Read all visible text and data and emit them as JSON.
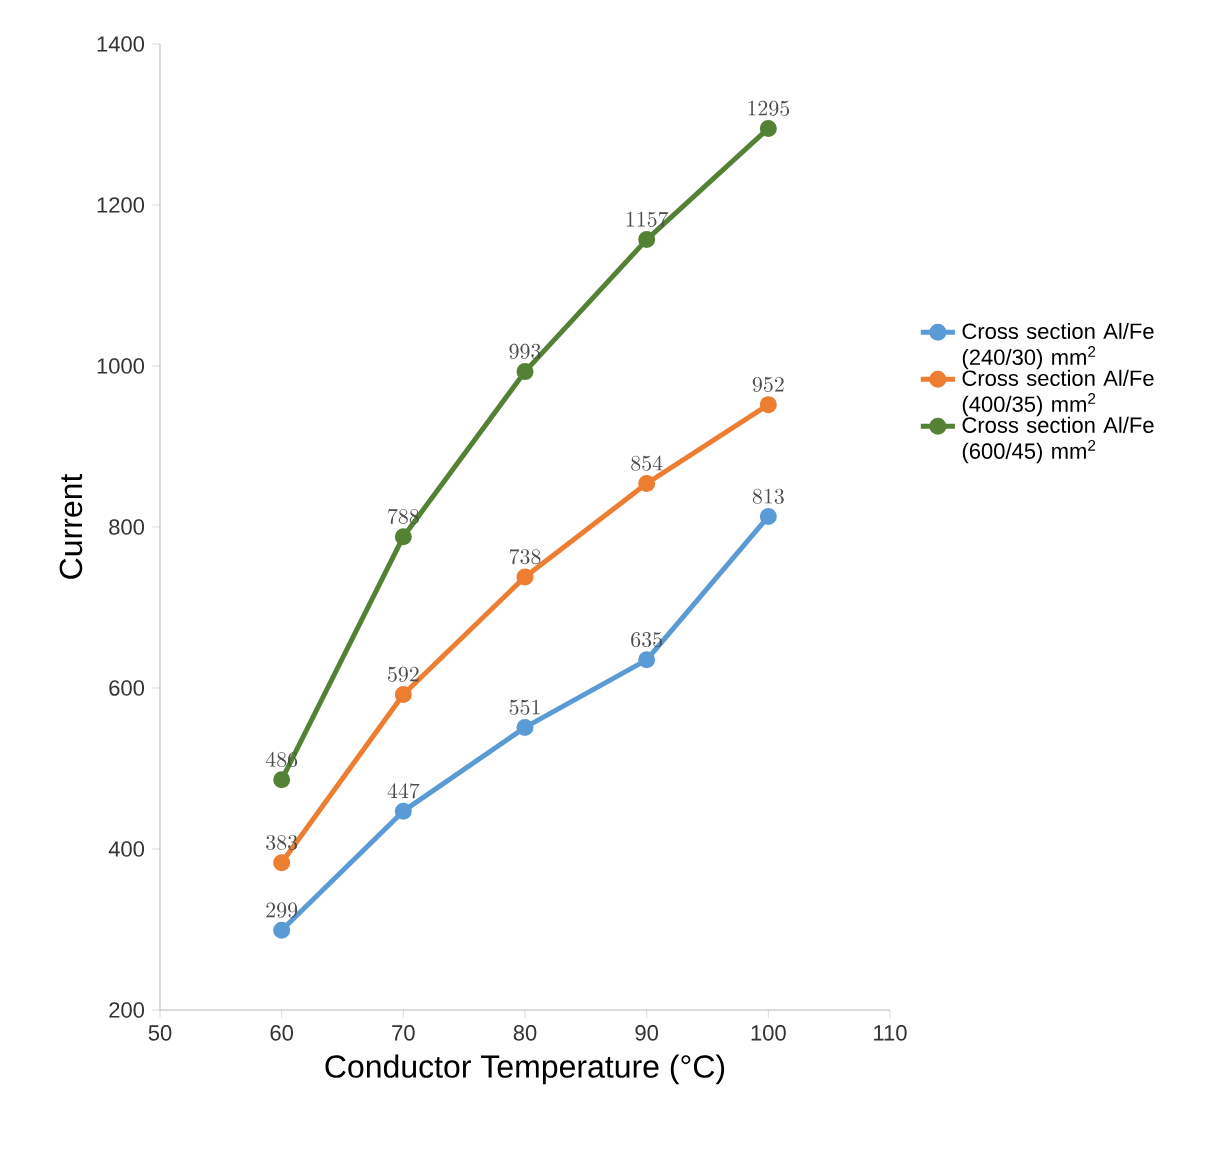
{
  "chart_data": {
    "type": "line",
    "xlabel": "Conductor Temperature (°C)",
    "ylabel": "Current",
    "x": [
      60,
      70,
      80,
      90,
      100
    ],
    "series": [
      {
        "name": "Cross section Al/Fe (240/30) mm$^{2}$",
        "color": "#5b9bd5",
        "values": [
          299,
          447,
          551,
          635,
          813
        ]
      },
      {
        "name": "Cross section Al/Fe (400/35) mm$^{2}$",
        "color": "#ed7d31",
        "values": [
          383,
          592,
          738,
          854,
          952
        ]
      },
      {
        "name": "Cross section Al/Fe (600/45) mm$^{2}$",
        "color": "#548235",
        "values": [
          486,
          788,
          993,
          1157,
          1295
        ]
      }
    ],
    "xlim": [
      50,
      110
    ],
    "xticks": [
      50,
      60,
      70,
      80,
      90,
      100,
      110
    ],
    "ylim": [
      200,
      1400
    ],
    "yticks": [
      200,
      400,
      600,
      800,
      1000,
      1200,
      1400
    ],
    "grid": false,
    "legend": "right",
    "marker": "circle",
    "line_style": "solid",
    "data_labels": true
  }
}
